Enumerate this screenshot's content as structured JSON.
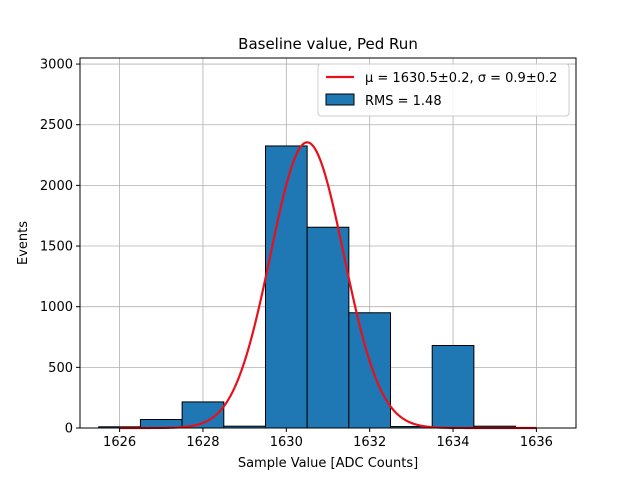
{
  "chart_data": {
    "type": "bar",
    "title": "Baseline value, Ped Run",
    "xlabel": "Sample Value [ADC Counts]",
    "ylabel": "Events",
    "xlim": [
      1625.05,
      1636.95
    ],
    "ylim": [
      0,
      3050
    ],
    "xticks": [
      1626,
      1628,
      1630,
      1632,
      1634,
      1636
    ],
    "yticks": [
      0,
      500,
      1000,
      1500,
      2000,
      2500,
      3000
    ],
    "grid": true,
    "legend_placement": "upper-right",
    "bins": [
      {
        "left": 1625.5,
        "right": 1626.5,
        "count": 10
      },
      {
        "left": 1626.5,
        "right": 1627.5,
        "count": 70
      },
      {
        "left": 1627.5,
        "right": 1628.5,
        "count": 215
      },
      {
        "left": 1628.5,
        "right": 1629.5,
        "count": 15
      },
      {
        "left": 1629.5,
        "right": 1630.5,
        "count": 2325
      },
      {
        "left": 1630.5,
        "right": 1631.5,
        "count": 1655
      },
      {
        "left": 1631.5,
        "right": 1632.5,
        "count": 950
      },
      {
        "left": 1632.5,
        "right": 1633.5,
        "count": 12
      },
      {
        "left": 1633.5,
        "right": 1634.5,
        "count": 680
      },
      {
        "left": 1634.5,
        "right": 1635.5,
        "count": 15
      }
    ],
    "fit": {
      "type": "gaussian",
      "mu": 1630.5,
      "sigma": 0.88,
      "amplitude": 2355,
      "x_range": [
        1626,
        1636
      ]
    },
    "series": [
      {
        "name": "μ = 1630.5±0.2, σ = 0.9±0.2",
        "kind": "line",
        "color": "#e8101a"
      },
      {
        "name": "RMS = 1.48",
        "kind": "bar",
        "color": "#1f77b4"
      }
    ]
  }
}
